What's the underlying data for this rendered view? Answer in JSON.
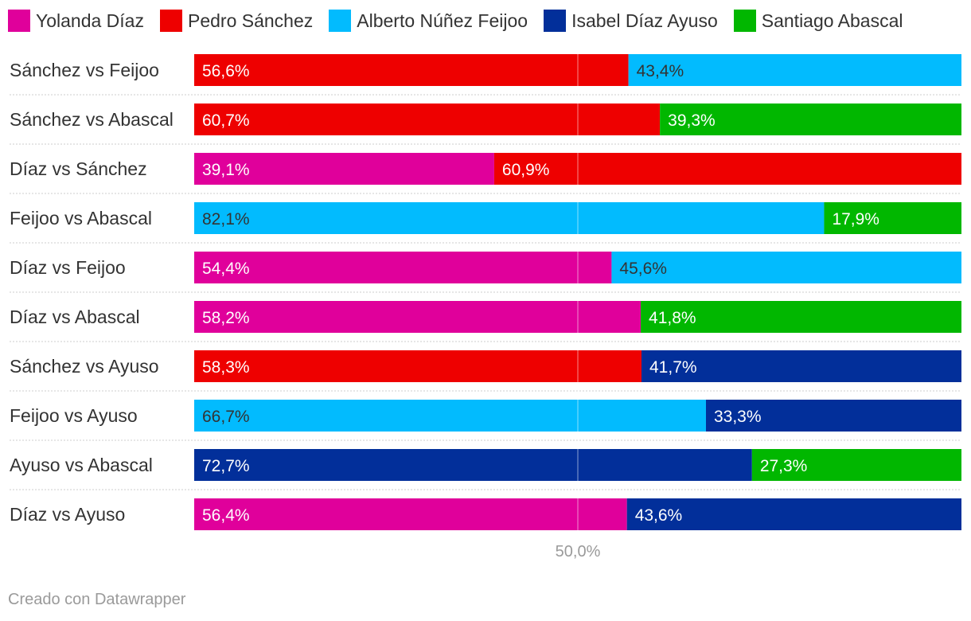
{
  "chart_data": {
    "type": "bar",
    "stacked": true,
    "orientation": "horizontal",
    "xlim": [
      0,
      100
    ],
    "reference_line": {
      "value": 50,
      "label": "50,0%"
    },
    "legend": [
      {
        "name": "Yolanda Díaz",
        "color": "#e0009b"
      },
      {
        "name": "Pedro Sánchez",
        "color": "#ee0000"
      },
      {
        "name": "Alberto Núñez Feijoo",
        "color": "#02bbfe"
      },
      {
        "name": "Isabel Díaz Ayuso",
        "color": "#022f9a"
      },
      {
        "name": "Santiago Abascal",
        "color": "#01b700"
      }
    ],
    "rows": [
      {
        "label": "Sánchez vs Feijoo",
        "segments": [
          {
            "candidate": "Pedro Sánchez",
            "value": 56.6,
            "label": "56,6%",
            "color": "#ee0000",
            "text_color": "#ffffff"
          },
          {
            "candidate": "Alberto Núñez Feijoo",
            "value": 43.4,
            "label": "43,4%",
            "color": "#02bbfe",
            "text_color": "#333333"
          }
        ]
      },
      {
        "label": "Sánchez vs Abascal",
        "segments": [
          {
            "candidate": "Pedro Sánchez",
            "value": 60.7,
            "label": "60,7%",
            "color": "#ee0000",
            "text_color": "#ffffff"
          },
          {
            "candidate": "Santiago Abascal",
            "value": 39.3,
            "label": "39,3%",
            "color": "#01b700",
            "text_color": "#ffffff"
          }
        ]
      },
      {
        "label": "Díaz vs Sánchez",
        "segments": [
          {
            "candidate": "Yolanda Díaz",
            "value": 39.1,
            "label": "39,1%",
            "color": "#e0009b",
            "text_color": "#ffffff"
          },
          {
            "candidate": "Pedro Sánchez",
            "value": 60.9,
            "label": "60,9%",
            "color": "#ee0000",
            "text_color": "#ffffff"
          }
        ]
      },
      {
        "label": "Feijoo vs Abascal",
        "segments": [
          {
            "candidate": "Alberto Núñez Feijoo",
            "value": 82.1,
            "label": "82,1%",
            "color": "#02bbfe",
            "text_color": "#333333"
          },
          {
            "candidate": "Santiago Abascal",
            "value": 17.9,
            "label": "17,9%",
            "color": "#01b700",
            "text_color": "#ffffff"
          }
        ]
      },
      {
        "label": "Díaz vs Feijoo",
        "segments": [
          {
            "candidate": "Yolanda Díaz",
            "value": 54.4,
            "label": "54,4%",
            "color": "#e0009b",
            "text_color": "#ffffff"
          },
          {
            "candidate": "Alberto Núñez Feijoo",
            "value": 45.6,
            "label": "45,6%",
            "color": "#02bbfe",
            "text_color": "#333333"
          }
        ]
      },
      {
        "label": "Díaz vs Abascal",
        "segments": [
          {
            "candidate": "Yolanda Díaz",
            "value": 58.2,
            "label": "58,2%",
            "color": "#e0009b",
            "text_color": "#ffffff"
          },
          {
            "candidate": "Santiago Abascal",
            "value": 41.8,
            "label": "41,8%",
            "color": "#01b700",
            "text_color": "#ffffff"
          }
        ]
      },
      {
        "label": "Sánchez vs Ayuso",
        "segments": [
          {
            "candidate": "Pedro Sánchez",
            "value": 58.3,
            "label": "58,3%",
            "color": "#ee0000",
            "text_color": "#ffffff"
          },
          {
            "candidate": "Isabel Díaz Ayuso",
            "value": 41.7,
            "label": "41,7%",
            "color": "#022f9a",
            "text_color": "#ffffff"
          }
        ]
      },
      {
        "label": "Feijoo vs Ayuso",
        "segments": [
          {
            "candidate": "Alberto Núñez Feijoo",
            "value": 66.7,
            "label": "66,7%",
            "color": "#02bbfe",
            "text_color": "#333333"
          },
          {
            "candidate": "Isabel Díaz Ayuso",
            "value": 33.3,
            "label": "33,3%",
            "color": "#022f9a",
            "text_color": "#ffffff"
          }
        ]
      },
      {
        "label": "Ayuso vs Abascal",
        "segments": [
          {
            "candidate": "Isabel Díaz Ayuso",
            "value": 72.7,
            "label": "72,7%",
            "color": "#022f9a",
            "text_color": "#ffffff"
          },
          {
            "candidate": "Santiago Abascal",
            "value": 27.3,
            "label": "27,3%",
            "color": "#01b700",
            "text_color": "#ffffff"
          }
        ]
      },
      {
        "label": "Díaz vs Ayuso",
        "segments": [
          {
            "candidate": "Yolanda Díaz",
            "value": 56.4,
            "label": "56,4%",
            "color": "#e0009b",
            "text_color": "#ffffff"
          },
          {
            "candidate": "Isabel Díaz Ayuso",
            "value": 43.6,
            "label": "43,6%",
            "color": "#022f9a",
            "text_color": "#ffffff"
          }
        ]
      }
    ]
  },
  "footer": {
    "credit": "Creado con Datawrapper"
  }
}
